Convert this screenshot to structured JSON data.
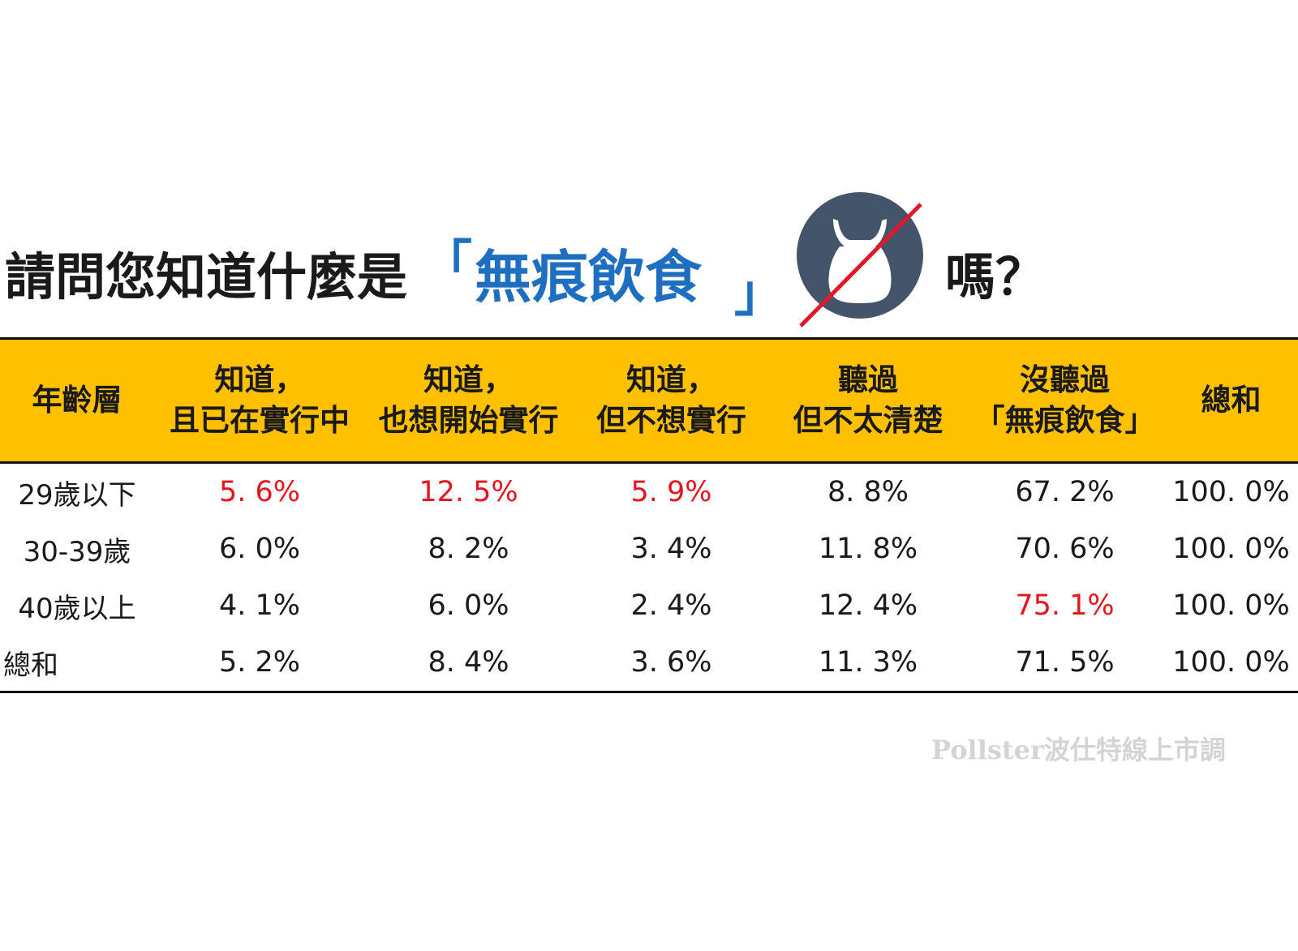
{
  "title": {
    "prefix": "請問您知道什麼是",
    "open_bracket": "「",
    "keyword": "無痕飲食",
    "close_bracket": "」",
    "suffix": "嗎？"
  },
  "icon": "no-plastic-bag-icon",
  "colors": {
    "header_bg": "#ffc000",
    "keyword": "#1e6fc0",
    "highlight": "#e8141c",
    "icon_circle": "#44546a"
  },
  "chart_data": {
    "type": "table",
    "columns": [
      {
        "line1": "年齡層",
        "line2": ""
      },
      {
        "line1": "知道，",
        "line2": "且已在實行中"
      },
      {
        "line1": "知道，",
        "line2": "也想開始實行"
      },
      {
        "line1": "知道，",
        "line2": "但不想實行"
      },
      {
        "line1": "聽過",
        "line2": "但不太清楚"
      },
      {
        "line1": "沒聽過",
        "line2": "「無痕飲食」"
      },
      {
        "line1": "總和",
        "line2": ""
      }
    ],
    "rows": [
      {
        "label": "29歲以下",
        "values": [
          "5. 6%",
          "12. 5%",
          "5. 9%",
          "8. 8%",
          "67. 2%",
          "100. 0%"
        ],
        "highlight": [
          true,
          true,
          true,
          false,
          false,
          false
        ]
      },
      {
        "label": "30-39歲",
        "values": [
          "6. 0%",
          "8. 2%",
          "3. 4%",
          "11. 8%",
          "70. 6%",
          "100. 0%"
        ],
        "highlight": [
          false,
          false,
          false,
          false,
          false,
          false
        ]
      },
      {
        "label": "40歲以上",
        "values": [
          "4. 1%",
          "6. 0%",
          "2. 4%",
          "12. 4%",
          "75. 1%",
          "100. 0%"
        ],
        "highlight": [
          false,
          false,
          false,
          false,
          true,
          false
        ]
      },
      {
        "label": "總和",
        "values": [
          "5. 2%",
          "8. 4%",
          "3. 6%",
          "11. 3%",
          "71. 5%",
          "100. 0%"
        ],
        "highlight": [
          false,
          false,
          false,
          false,
          false,
          false
        ]
      }
    ]
  },
  "watermark": "Pollster波仕特線上市調"
}
